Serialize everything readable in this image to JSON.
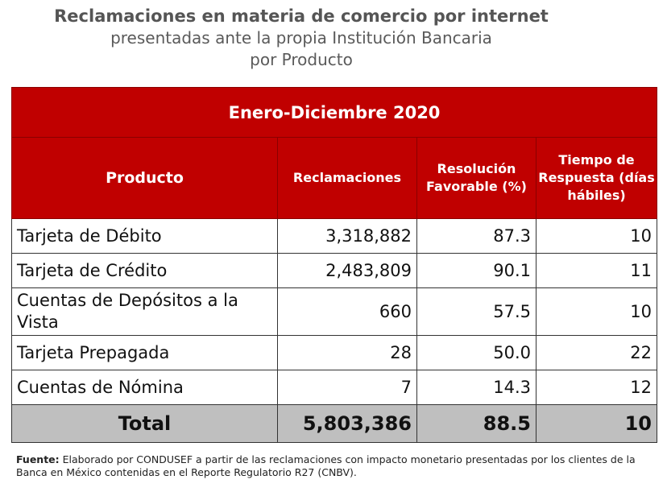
{
  "title": {
    "line1": "Reclamaciones en materia de comercio por internet",
    "line2": "presentadas ante la propia Institución Bancaria",
    "line3": "por Producto"
  },
  "table": {
    "period": "Enero-Diciembre 2020",
    "columns": [
      "Producto",
      "Reclamaciones",
      "Resolución Favorable (%)",
      "Tiempo de Respuesta (días hábiles)"
    ],
    "rows": [
      {
        "producto": "Tarjeta de Débito",
        "reclamaciones": "3,318,882",
        "resolucion": "87.3",
        "tiempo": "10"
      },
      {
        "producto": "Tarjeta de Crédito",
        "reclamaciones": "2,483,809",
        "resolucion": "90.1",
        "tiempo": "11"
      },
      {
        "producto": "Cuentas de Depósitos a la Vista",
        "reclamaciones": "660",
        "resolucion": "57.5",
        "tiempo": "10"
      },
      {
        "producto": "Tarjeta Prepagada",
        "reclamaciones": "28",
        "resolucion": "50.0",
        "tiempo": "22"
      },
      {
        "producto": "Cuentas de Nómina",
        "reclamaciones": "7",
        "resolucion": "14.3",
        "tiempo": "12"
      }
    ],
    "total": {
      "label": "Total",
      "reclamaciones": "5,803,386",
      "resolucion": "88.5",
      "tiempo": "10"
    }
  },
  "source": {
    "label": "Fuente:",
    "text": " Elaborado por CONDUSEF a partir de las reclamaciones con impacto monetario presentadas por los clientes de la Banca en México contenidas en el Reporte Regulatorio R27 (CNBV)."
  }
}
